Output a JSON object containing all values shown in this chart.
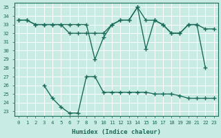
{
  "xlabel": "Humidex (Indice chaleur)",
  "x_all": [
    0,
    1,
    2,
    3,
    4,
    5,
    6,
    7,
    8,
    9,
    10,
    11,
    12,
    13,
    14,
    15,
    16,
    17,
    18,
    19,
    20,
    21,
    22,
    23
  ],
  "lineA": [
    33.5,
    33.5,
    33.0,
    33.0,
    33.0,
    33.0,
    33.0,
    33.0,
    33.0,
    29.0,
    31.5,
    33.0,
    33.5,
    33.5,
    35.0,
    30.2,
    33.5,
    33.0,
    32.0,
    32.0,
    33.0,
    33.0,
    32.5,
    32.5
  ],
  "lineB_x": [
    0,
    1,
    2,
    3,
    4,
    5,
    6,
    7,
    8,
    9,
    10,
    11,
    12,
    13,
    14,
    15,
    16,
    17,
    18,
    19,
    20,
    21,
    22
  ],
  "lineB_y": [
    33.5,
    33.5,
    33.0,
    33.0,
    33.0,
    33.0,
    32.0,
    32.0,
    32.0,
    32.0,
    32.0,
    33.0,
    33.5,
    33.5,
    35.0,
    33.5,
    33.5,
    33.0,
    32.0,
    32.0,
    33.0,
    33.0,
    28.0
  ],
  "lineC_x": [
    3,
    4,
    5,
    6,
    7,
    8,
    9,
    10,
    11,
    12,
    13,
    14,
    15,
    16,
    17,
    18,
    19,
    20,
    21,
    22,
    23
  ],
  "lineC_y": [
    26.0,
    24.5,
    23.5,
    22.8,
    22.8,
    27.0,
    27.0,
    25.2,
    25.2,
    25.2,
    25.2,
    25.2,
    25.2,
    25.0,
    25.0,
    25.0,
    24.8,
    24.5,
    24.5,
    24.5,
    24.5
  ],
  "color": "#1a6b5a",
  "bg_color": "#c8ebe3",
  "grid_color": "#ffffff",
  "ylim": [
    22.5,
    35.5
  ],
  "xlim": [
    -0.5,
    23.5
  ],
  "yticks": [
    23,
    24,
    25,
    26,
    27,
    28,
    29,
    30,
    31,
    32,
    33,
    34,
    35
  ],
  "xticks": [
    0,
    1,
    2,
    3,
    4,
    5,
    6,
    7,
    8,
    9,
    10,
    11,
    12,
    13,
    14,
    15,
    16,
    17,
    18,
    19,
    20,
    21,
    22,
    23
  ],
  "marker": "+",
  "linewidth": 1.0,
  "markersize": 4.5
}
